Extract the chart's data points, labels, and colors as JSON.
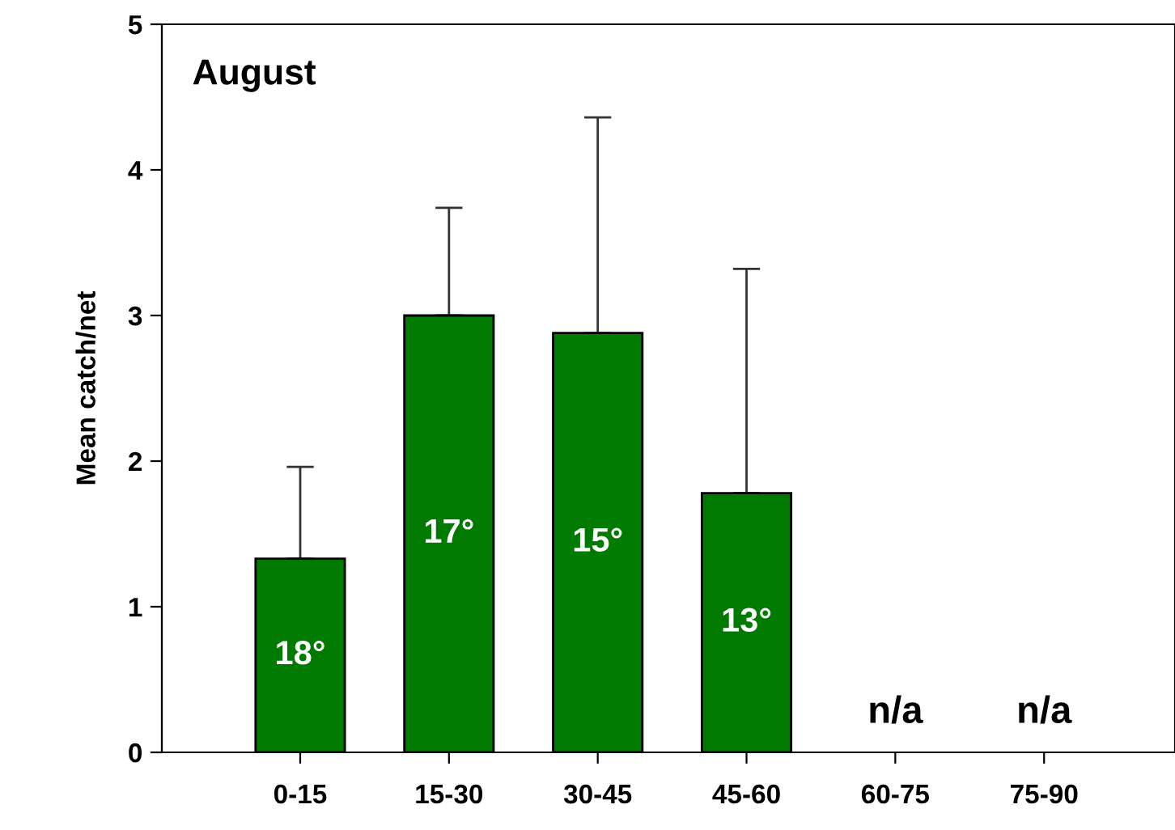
{
  "chart_data": {
    "type": "bar",
    "ylabel": "Mean catch/net",
    "categories": [
      "0-15",
      "15-30",
      "30-45",
      "45-60",
      "60-75",
      "75-90"
    ],
    "values": [
      1.33,
      3.0,
      2.88,
      1.78,
      null,
      null
    ],
    "color": "#007a00",
    "errors": [
      [
        1.33,
        1.96
      ],
      [
        3.0,
        3.74
      ],
      [
        2.88,
        4.36
      ],
      [
        1.78,
        3.32
      ],
      null,
      null
    ],
    "ylim": [
      0,
      5
    ],
    "yticks": [
      0,
      1,
      2,
      3,
      4,
      5
    ],
    "grid": false,
    "legend": false,
    "annotations": [
      "August",
      "18°",
      "17°",
      "15°",
      "13°",
      "n/a",
      "n/a"
    ]
  }
}
